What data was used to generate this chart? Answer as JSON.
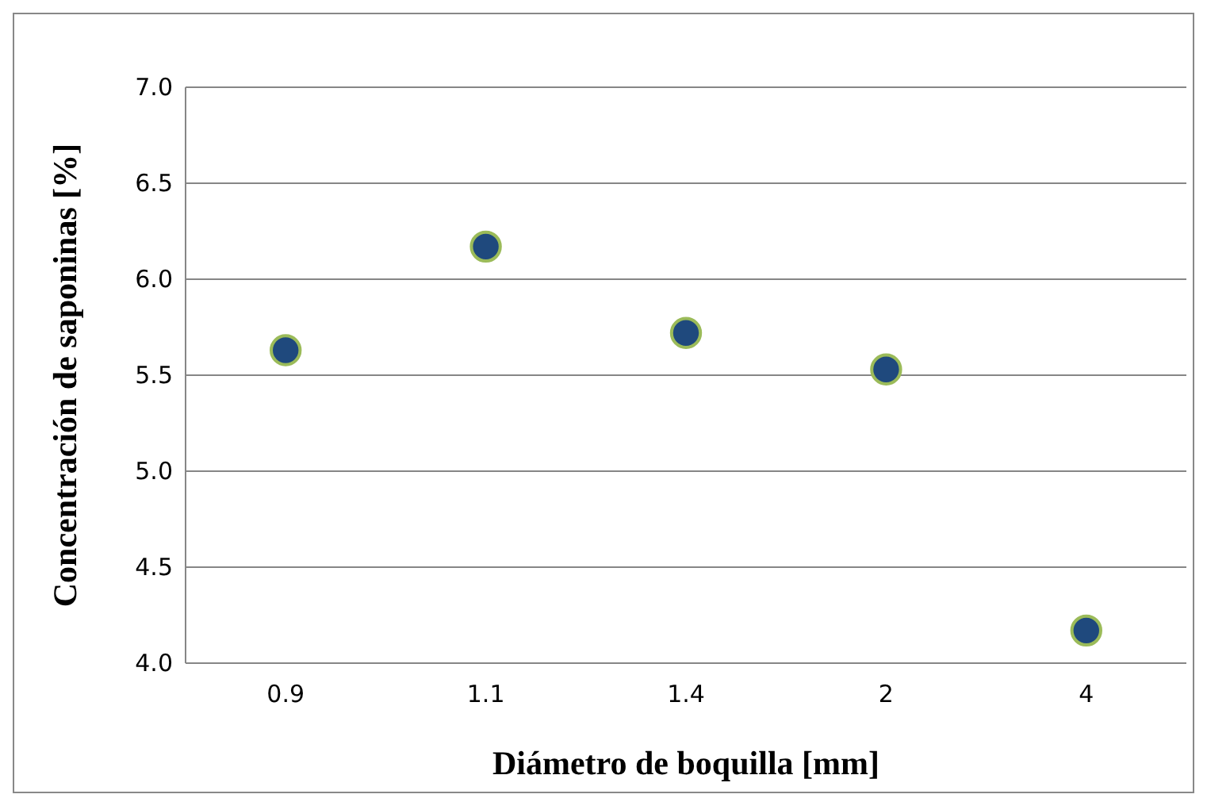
{
  "chart_data": {
    "type": "scatter",
    "xlabel": "Diámetro de boquilla [mm]",
    "ylabel": "Concentración de saponinas [%]",
    "categories": [
      "0.9",
      "1.1",
      "1.4",
      "2",
      "4"
    ],
    "series": [
      {
        "color": "#1f497d",
        "values": [
          5.63,
          6.17,
          5.72,
          5.53,
          4.17
        ]
      }
    ],
    "ylim": [
      4.0,
      7.0
    ],
    "yticks": [
      {
        "value": 4,
        "label": "4.0"
      },
      {
        "value": 4.5,
        "label": "4.5"
      },
      {
        "value": 5,
        "label": "5.0"
      },
      {
        "value": 5.5,
        "label": "5.5"
      },
      {
        "value": 6,
        "label": "6.0"
      },
      {
        "value": 6.5,
        "label": "6.5"
      },
      {
        "value": 7,
        "label": "7.0"
      }
    ],
    "grid": "y",
    "marker": "circle"
  }
}
